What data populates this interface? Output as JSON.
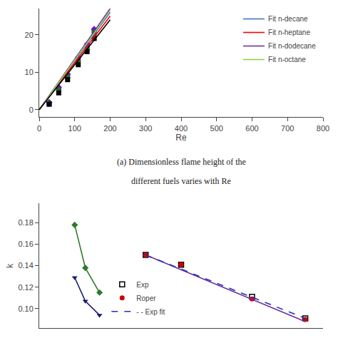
{
  "chart_data": [
    {
      "type": "scatter",
      "xlabel": "Re",
      "xlim": [
        0,
        800
      ],
      "ylim": [
        -2,
        27
      ],
      "xticks": [
        0,
        100,
        200,
        300,
        400,
        500,
        600,
        700,
        800
      ],
      "yticks": [
        0,
        10,
        20
      ],
      "grid": false,
      "legend": "upper right",
      "annotations": [
        "(a) Dimensionless flame height of the",
        "different fuels varies with Re"
      ],
      "series": [
        {
          "type": "scatter",
          "color": "#1a1aff",
          "marker": "square",
          "x": [
            28,
            55,
            80,
            110,
            135,
            155
          ],
          "values": [
            1.5,
            5.5,
            9,
            13.5,
            17,
            21
          ]
        },
        {
          "type": "scatter",
          "color": "#cc0000",
          "marker": "circle",
          "x": [
            28,
            55,
            80,
            110,
            135,
            155
          ],
          "values": [
            1.5,
            5,
            8.5,
            13,
            16,
            20
          ]
        },
        {
          "type": "scatter",
          "color": "#7b00d4",
          "marker": "diamond",
          "x": [
            28,
            55,
            80,
            110,
            135,
            155
          ],
          "values": [
            2,
            6,
            9.5,
            14,
            17.5,
            21.5
          ]
        },
        {
          "type": "scatter",
          "color": "#008800",
          "marker": "triangle-up",
          "x": [
            28,
            55,
            80,
            110,
            135,
            155
          ],
          "values": [
            2,
            5.5,
            9,
            13,
            16.5,
            21
          ]
        },
        {
          "type": "scatter",
          "color": "#000000",
          "marker": "square",
          "x": [
            28,
            55,
            80,
            110,
            135,
            155
          ],
          "values": [
            1.5,
            4.5,
            8,
            12,
            15.5,
            19
          ]
        },
        {
          "name": "Fit n-decane",
          "type": "line",
          "line_style": "solid",
          "color": "#4472c4",
          "x": [
            0,
            200
          ],
          "values": [
            0,
            26
          ]
        },
        {
          "name": "Fit n-heptane",
          "type": "line",
          "line_style": "solid",
          "color": "#ff0000",
          "x": [
            0,
            200
          ],
          "values": [
            0,
            25
          ]
        },
        {
          "name": "Fit n-dodecane",
          "type": "line",
          "line_style": "solid",
          "color": "#7030a0",
          "x": [
            0,
            200
          ],
          "values": [
            0,
            27
          ]
        },
        {
          "name": "Fit n-octane",
          "type": "line",
          "line_style": "solid",
          "color": "#92d050",
          "x": [
            0,
            200
          ],
          "values": [
            0,
            26.4
          ]
        },
        {
          "type": "line",
          "line_style": "solid",
          "color": "#000000",
          "x": [
            0,
            200
          ],
          "values": [
            0,
            24
          ]
        }
      ]
    },
    {
      "type": "scatter",
      "ylabel": "k",
      "xlim": [
        0,
        800
      ],
      "ylim": [
        0.082,
        0.198
      ],
      "xticks": [],
      "yticks": [
        {
          "value": 0.1,
          "label": "0.10"
        },
        0.12,
        0.14,
        0.16,
        0.18
      ],
      "tick_labels": "y",
      "grid": false,
      "legend": "lower center",
      "series": [
        {
          "type": "line",
          "line_style": "solid",
          "marker": "diamond",
          "color": "#2d7a2d",
          "x": [
            100,
            130,
            170
          ],
          "values": [
            0.178,
            0.138,
            0.115
          ]
        },
        {
          "type": "line",
          "line_style": "solid",
          "marker": "triangle-down",
          "color": "#1a1a6e",
          "x": [
            100,
            130,
            170
          ],
          "values": [
            0.129,
            0.107,
            0.094
          ]
        },
        {
          "name": "Exp",
          "type": "scatter",
          "marker": "square-open",
          "color": "#000000",
          "x": [
            300,
            400,
            600,
            750
          ],
          "values": [
            0.15,
            0.141,
            0.111,
            0.091
          ]
        },
        {
          "name": "Roper",
          "type": "scatter",
          "marker": "circle",
          "color": "#cc0000",
          "x": [
            300,
            400,
            600,
            750
          ],
          "values": [
            0.15,
            0.141,
            0.109,
            0.09
          ]
        },
        {
          "type": "line",
          "line_style": "solid",
          "color": "#7030a0",
          "x": [
            300,
            750
          ],
          "values": [
            0.15,
            0.088
          ]
        },
        {
          "name": "- - Exp fit",
          "type": "line",
          "line_style": "dashed",
          "color": "#2233bb",
          "x": [
            300,
            750
          ],
          "values": [
            0.15,
            0.091
          ]
        }
      ]
    }
  ]
}
